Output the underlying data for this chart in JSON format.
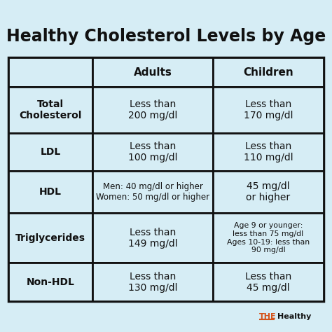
{
  "title": "Healthy Cholesterol Levels by Age",
  "bg_color": "#d6edf5",
  "table_bg": "#d6edf5",
  "cell_bg": "#d6edf5",
  "border_color": "#111111",
  "title_color": "#111111",
  "header_text_color": "#111111",
  "row_label_color": "#111111",
  "cell_text_color": "#111111",
  "brand_the_color": "#d4531a",
  "brand_healthy_color": "#111111",
  "col_headers": [
    "Adults",
    "Children"
  ],
  "row_labels": [
    "Total\nCholesterol",
    "LDL",
    "HDL",
    "Triglycerides",
    "Non-HDL"
  ],
  "adults_data": [
    "Less than\n200 mg/dl",
    "Less than\n100 mg/dl",
    "Men: 40 mg/dl or higher\nWomen: 50 mg/dl or higher",
    "Less than\n149 mg/dl",
    "Less than\n130 mg/dl"
  ],
  "children_data": [
    "Less than\n170 mg/dl",
    "Less than\n110 mg/dl",
    "45 mg/dl\nor higher",
    "Age 9 or younger:\nless than 75 mg/dl\nAges 10-19: less than\n90 mg/dl",
    "Less than\n45 mg/dl"
  ],
  "figsize": [
    4.74,
    4.74
  ],
  "dpi": 100,
  "title_fontsize": 17,
  "header_fontsize": 11,
  "label_fontsize": 10,
  "cell_fontsize": 10,
  "cell_fontsize_small": 8.5,
  "brand_fontsize": 8
}
